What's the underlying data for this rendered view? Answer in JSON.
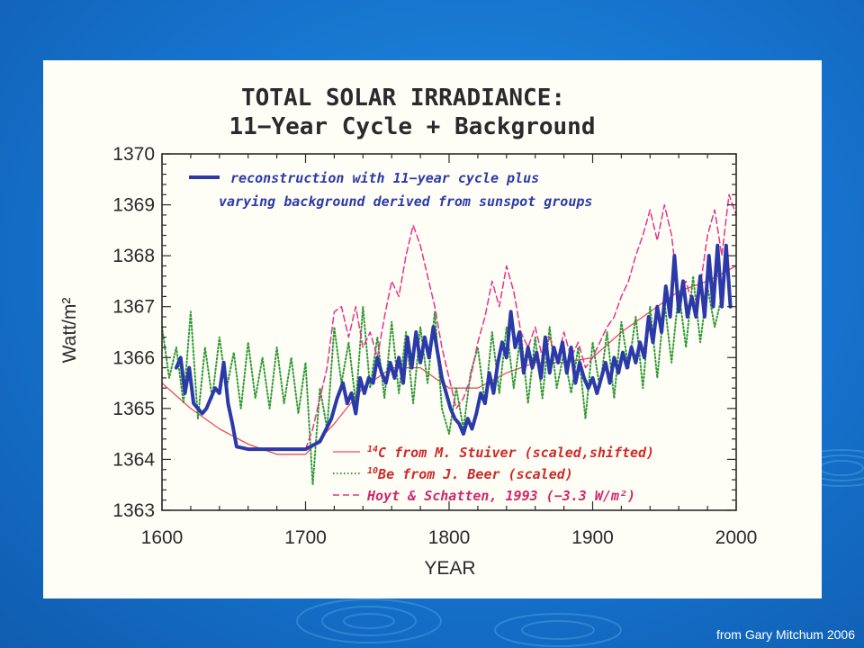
{
  "credit": "from Gary Mitchum 2006",
  "chart_data": {
    "type": "line",
    "title": "TOTAL SOLAR IRRADIANCE:",
    "subtitle": "11−Year Cycle + Background",
    "xlabel": "YEAR",
    "ylabel": "Watt/m²",
    "xlim": [
      1600,
      2000
    ],
    "ylim": [
      1363,
      1370
    ],
    "x_ticks": [
      1600,
      1700,
      1800,
      1900,
      2000
    ],
    "y_ticks": [
      1363,
      1364,
      1365,
      1366,
      1367,
      1368,
      1369,
      1370
    ],
    "grid": false,
    "legend_position": "top-left and bottom-right",
    "legend_top": {
      "line1": "reconstruction with 11−year cycle plus",
      "line2": "varying background derived from sunspot groups"
    },
    "legend_bottom": [
      {
        "sup": "14",
        "text": "C from M. Stuiver (scaled,shifted)"
      },
      {
        "sup": "10",
        "text": "Be from J. Beer (scaled)"
      },
      {
        "sup": "",
        "text": "Hoyt & Schatten, 1993 (−3.3 W/m²)"
      }
    ],
    "series": [
      {
        "key": "reconstruction",
        "color": "#2b3aa8",
        "style": "solid-thick",
        "x": [
          1610,
          1613,
          1616,
          1619,
          1622,
          1625,
          1628,
          1631,
          1634,
          1637,
          1640,
          1643,
          1646,
          1649,
          1652,
          1660,
          1680,
          1700,
          1710,
          1718,
          1722,
          1726,
          1729,
          1732,
          1735,
          1738,
          1741,
          1744,
          1747,
          1750,
          1753,
          1756,
          1759,
          1762,
          1765,
          1768,
          1771,
          1774,
          1777,
          1780,
          1783,
          1786,
          1789,
          1792,
          1795,
          1798,
          1801,
          1804,
          1807,
          1810,
          1813,
          1816,
          1819,
          1822,
          1825,
          1828,
          1831,
          1834,
          1837,
          1840,
          1843,
          1846,
          1849,
          1852,
          1855,
          1858,
          1861,
          1864,
          1867,
          1870,
          1873,
          1876,
          1879,
          1882,
          1885,
          1888,
          1891,
          1894,
          1897,
          1900,
          1903,
          1906,
          1909,
          1912,
          1915,
          1918,
          1921,
          1924,
          1927,
          1930,
          1933,
          1936,
          1939,
          1942,
          1945,
          1948,
          1951,
          1954,
          1957,
          1960,
          1963,
          1966,
          1969,
          1972,
          1975,
          1978,
          1981,
          1984,
          1987,
          1990,
          1993,
          1996
        ],
        "y": [
          1365.8,
          1366.0,
          1365.3,
          1365.8,
          1365.1,
          1365.0,
          1364.9,
          1365.0,
          1365.2,
          1365.4,
          1365.3,
          1365.9,
          1365.1,
          1364.7,
          1364.25,
          1364.2,
          1364.2,
          1364.2,
          1364.35,
          1364.8,
          1365.2,
          1365.5,
          1365.1,
          1365.3,
          1364.9,
          1365.6,
          1365.3,
          1365.6,
          1365.5,
          1366.0,
          1365.7,
          1365.5,
          1365.9,
          1365.6,
          1366.0,
          1365.5,
          1366.4,
          1365.8,
          1366.5,
          1365.9,
          1366.4,
          1366.0,
          1366.6,
          1366.1,
          1365.6,
          1365.3,
          1365.0,
          1364.8,
          1364.7,
          1364.5,
          1364.8,
          1364.6,
          1364.9,
          1365.3,
          1365.1,
          1365.7,
          1365.3,
          1365.9,
          1366.3,
          1366.0,
          1366.9,
          1366.2,
          1366.5,
          1365.7,
          1366.2,
          1365.8,
          1366.1,
          1365.6,
          1366.4,
          1365.7,
          1366.2,
          1365.9,
          1366.3,
          1365.7,
          1366.2,
          1365.5,
          1365.9,
          1365.6,
          1365.4,
          1365.6,
          1365.3,
          1365.6,
          1365.9,
          1365.5,
          1366.0,
          1365.7,
          1366.1,
          1365.8,
          1366.2,
          1365.9,
          1366.3,
          1366.0,
          1366.8,
          1366.3,
          1367.0,
          1366.5,
          1367.4,
          1366.8,
          1368.0,
          1366.9,
          1367.5,
          1366.8,
          1367.2,
          1366.8,
          1367.6,
          1366.8,
          1368.0,
          1367.0,
          1368.2,
          1367.0,
          1368.2,
          1367.0
        ]
      },
      {
        "key": "c14",
        "color": "#ee4a5a",
        "style": "solid-thin",
        "x": [
          1600,
          1620,
          1640,
          1660,
          1680,
          1700,
          1720,
          1740,
          1760,
          1780,
          1800,
          1820,
          1840,
          1860,
          1880,
          1900,
          1920,
          1940,
          1960,
          1980,
          2000
        ],
        "y": [
          1365.5,
          1365.0,
          1364.6,
          1364.3,
          1364.1,
          1364.1,
          1364.7,
          1365.4,
          1365.8,
          1365.8,
          1365.4,
          1365.4,
          1365.7,
          1365.9,
          1365.9,
          1366.0,
          1366.5,
          1366.9,
          1367.3,
          1367.5,
          1367.8
        ]
      },
      {
        "key": "be10",
        "color": "#2e9a36",
        "style": "dotted",
        "x": [
          1600,
          1605,
          1610,
          1615,
          1620,
          1625,
          1630,
          1635,
          1640,
          1645,
          1650,
          1655,
          1660,
          1665,
          1670,
          1675,
          1680,
          1685,
          1690,
          1695,
          1700,
          1705,
          1710,
          1715,
          1720,
          1725,
          1730,
          1735,
          1740,
          1745,
          1750,
          1755,
          1760,
          1765,
          1770,
          1775,
          1780,
          1785,
          1790,
          1795,
          1800,
          1805,
          1810,
          1815,
          1820,
          1825,
          1830,
          1835,
          1840,
          1845,
          1850,
          1855,
          1860,
          1865,
          1870,
          1875,
          1880,
          1885,
          1890,
          1895,
          1900,
          1905,
          1910,
          1915,
          1920,
          1925,
          1930,
          1935,
          1940,
          1945,
          1950,
          1955,
          1960,
          1965,
          1970,
          1975,
          1980,
          1985,
          1990
        ],
        "y": [
          1366.6,
          1365.6,
          1366.2,
          1365.1,
          1366.9,
          1364.8,
          1366.2,
          1365.2,
          1366.4,
          1365.4,
          1366.1,
          1365.0,
          1366.3,
          1365.2,
          1366.0,
          1365.0,
          1366.2,
          1365.1,
          1366.0,
          1364.9,
          1365.9,
          1363.5,
          1365.4,
          1364.6,
          1366.6,
          1365.5,
          1366.3,
          1365.1,
          1367.0,
          1365.4,
          1366.4,
          1365.2,
          1366.7,
          1365.3,
          1366.5,
          1365.1,
          1366.6,
          1365.5,
          1366.9,
          1365.0,
          1364.5,
          1365.4,
          1364.6,
          1365.7,
          1366.2,
          1365.1,
          1366.5,
          1365.3,
          1366.6,
          1365.4,
          1366.5,
          1365.1,
          1366.4,
          1365.2,
          1366.6,
          1365.4,
          1366.1,
          1365.3,
          1366.2,
          1364.8,
          1366.3,
          1365.4,
          1366.5,
          1365.2,
          1366.7,
          1365.8,
          1366.8,
          1365.4,
          1367.0,
          1365.6,
          1367.1,
          1365.9,
          1367.3,
          1366.2,
          1367.6,
          1366.3,
          1367.4,
          1366.6,
          1367.2
        ]
      },
      {
        "key": "hoyt",
        "color": "#e8338a",
        "style": "dashed",
        "x": [
          1700,
          1705,
          1710,
          1715,
          1720,
          1725,
          1730,
          1735,
          1740,
          1745,
          1750,
          1755,
          1760,
          1765,
          1770,
          1775,
          1780,
          1785,
          1790,
          1795,
          1800,
          1805,
          1810,
          1815,
          1820,
          1825,
          1830,
          1835,
          1840,
          1845,
          1850,
          1855,
          1860,
          1865,
          1870,
          1875,
          1880,
          1885,
          1890,
          1895,
          1900,
          1905,
          1910,
          1915,
          1920,
          1925,
          1930,
          1935,
          1940,
          1945,
          1950,
          1955,
          1960,
          1965,
          1970,
          1975,
          1980,
          1985,
          1990,
          1995,
          2000
        ],
        "y": [
          1364.2,
          1364.6,
          1365.2,
          1365.8,
          1366.9,
          1367.0,
          1366.4,
          1367.0,
          1366.2,
          1366.5,
          1366.0,
          1366.8,
          1367.5,
          1367.2,
          1368.0,
          1368.6,
          1368.2,
          1367.6,
          1367.0,
          1366.2,
          1365.6,
          1365.0,
          1365.2,
          1365.6,
          1366.3,
          1366.8,
          1367.5,
          1367.0,
          1367.8,
          1367.3,
          1366.5,
          1366.2,
          1366.6,
          1366.0,
          1366.4,
          1365.9,
          1366.5,
          1366.0,
          1366.3,
          1365.8,
          1366.0,
          1366.3,
          1366.6,
          1366.8,
          1367.2,
          1367.5,
          1368.0,
          1368.4,
          1368.9,
          1368.3,
          1369.0,
          1368.4,
          1367.2,
          1367.5,
          1367.0,
          1367.4,
          1368.4,
          1368.9,
          1368.0,
          1369.2,
          1368.8
        ]
      }
    ]
  }
}
